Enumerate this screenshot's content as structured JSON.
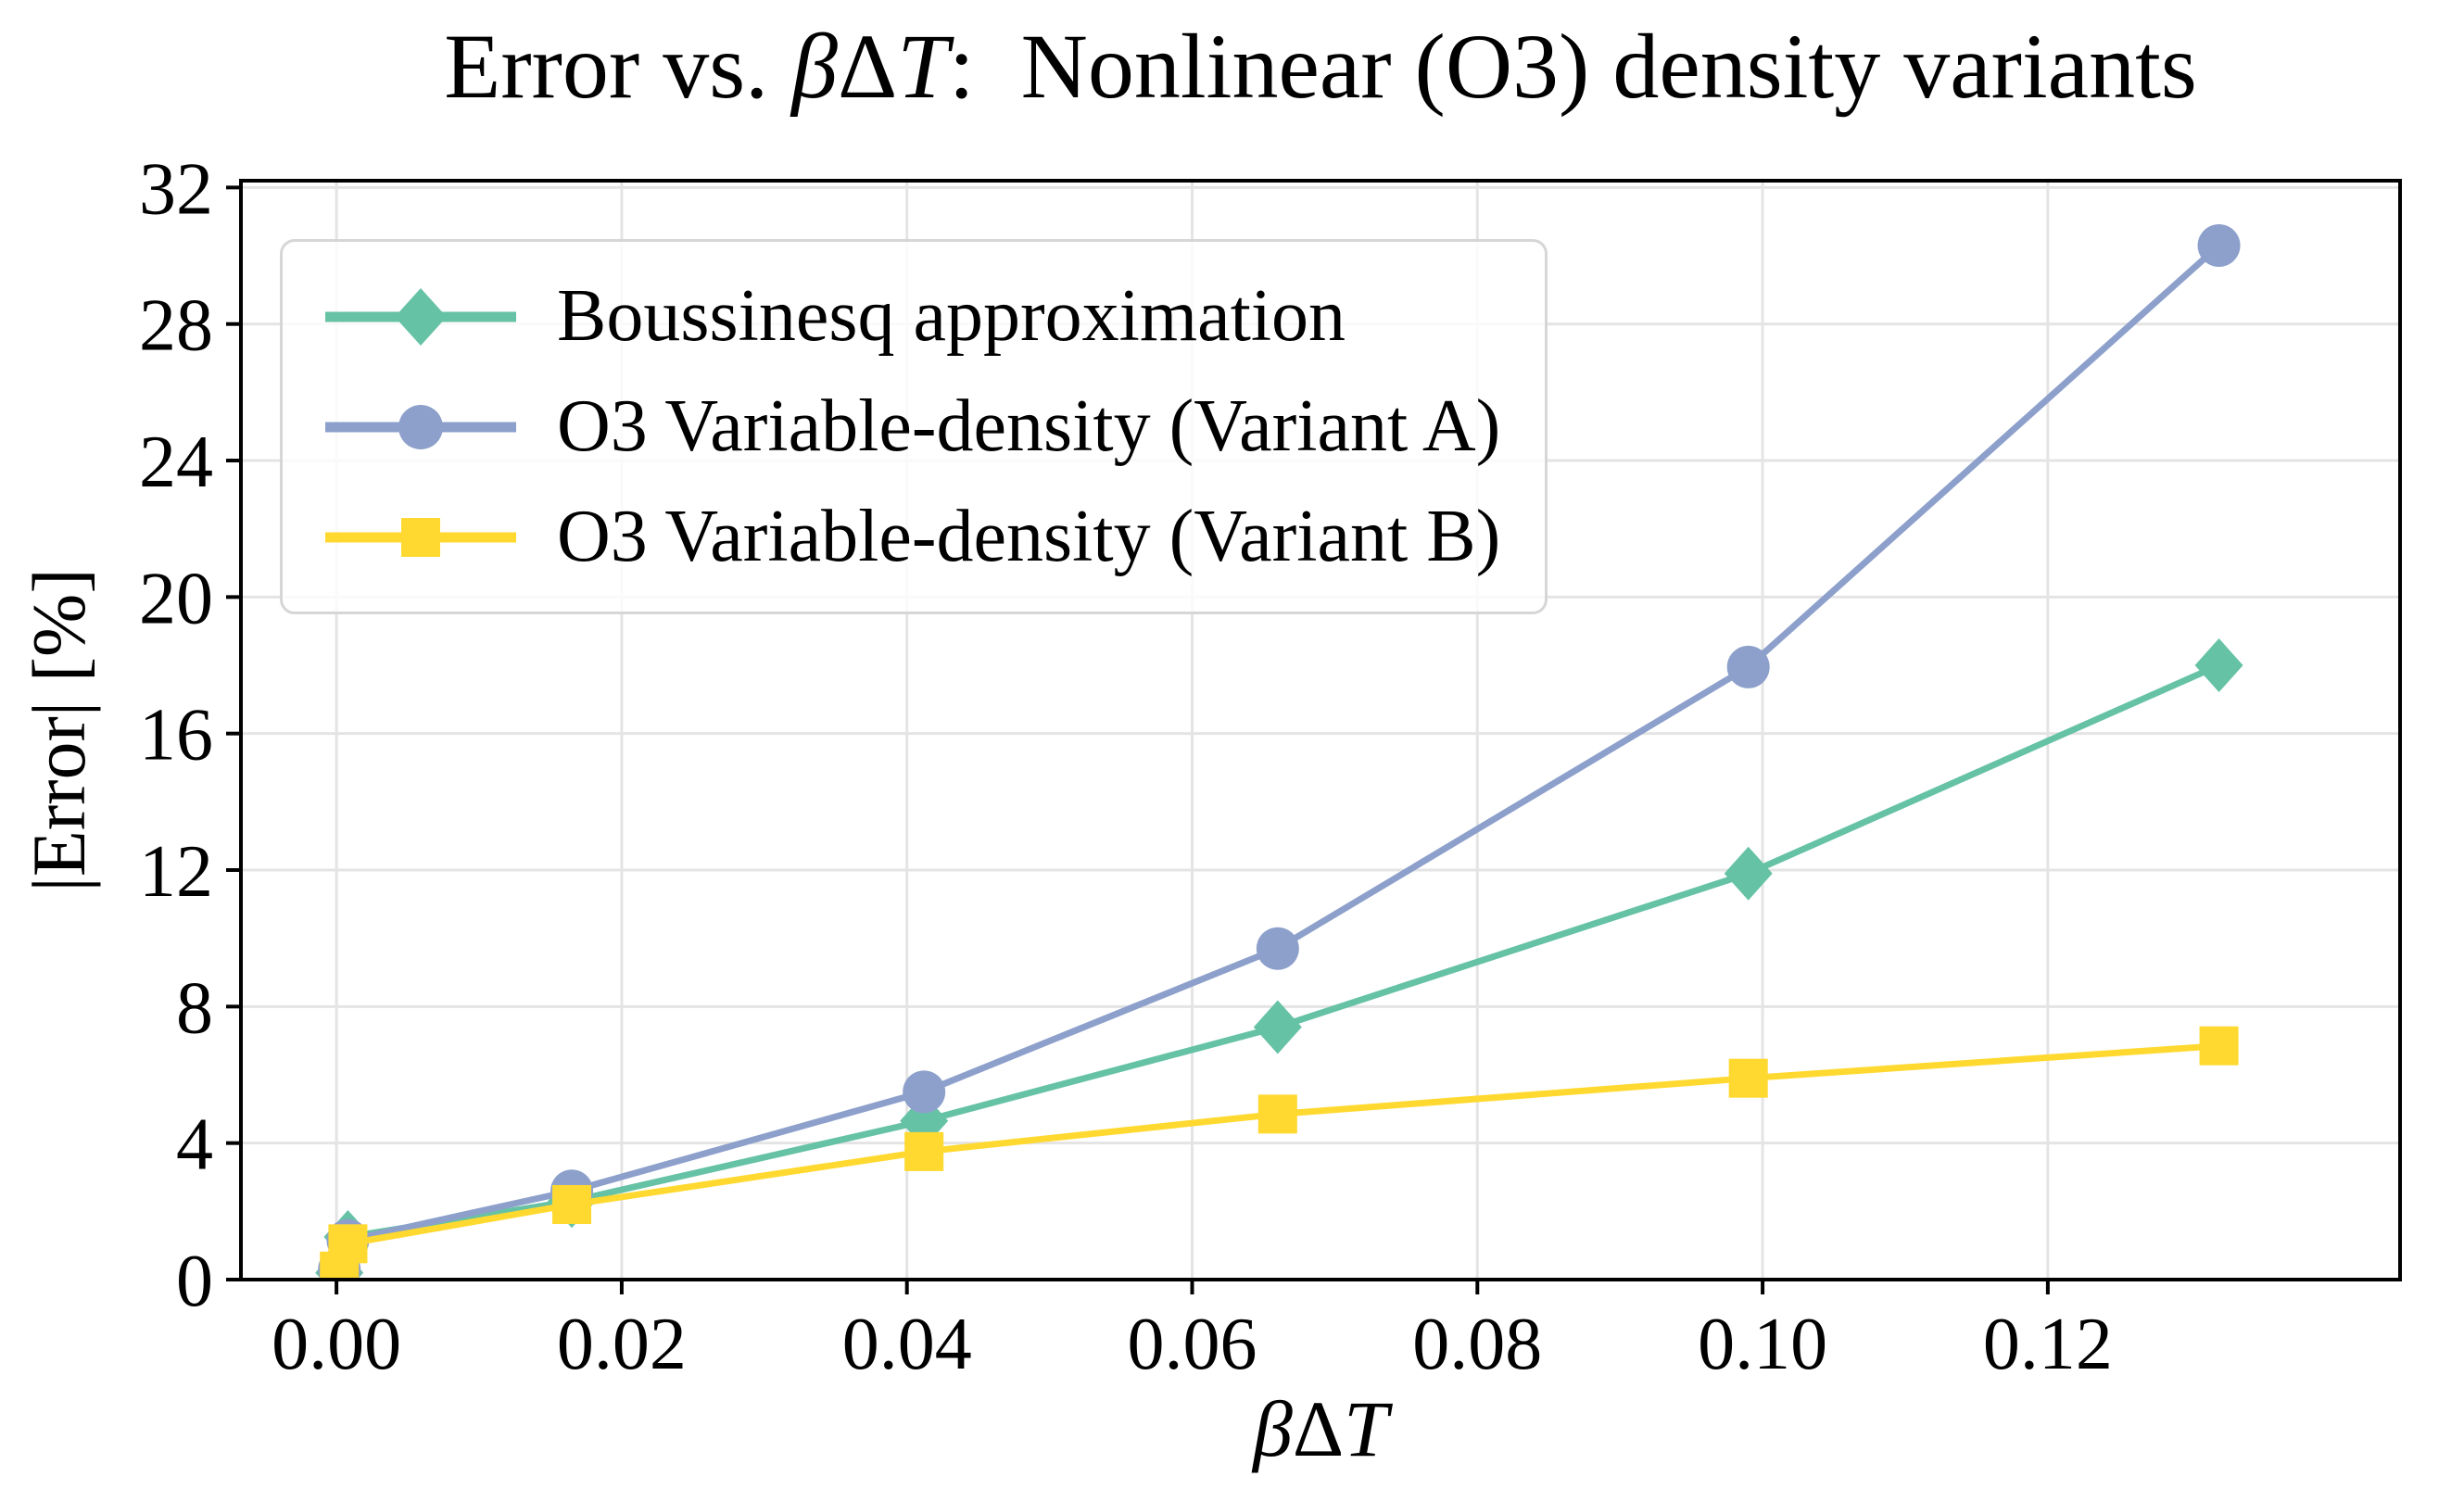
{
  "chart_data": {
    "type": "line",
    "title": {
      "prefix": "Error vs. ",
      "math_parts": [
        "β",
        "Δ",
        "T"
      ],
      "suffix": ":  Nonlinear (O3) density variants"
    },
    "xlabel": {
      "math_parts": [
        "β",
        "Δ",
        "T"
      ]
    },
    "ylabel": "|Error| [%]",
    "x_ticks": {
      "values": [
        0.0,
        0.02,
        0.04,
        0.06,
        0.08,
        0.1,
        0.12
      ],
      "labels": [
        "0.00",
        "0.02",
        "0.04",
        "0.06",
        "0.08",
        "0.10",
        "0.12"
      ]
    },
    "y_ticks": {
      "values": [
        0,
        4,
        8,
        12,
        16,
        20,
        24,
        28,
        32
      ],
      "labels": [
        "0",
        "4",
        "8",
        "12",
        "16",
        "20",
        "24",
        "28",
        "32"
      ]
    },
    "xlim": [
      -0.0067,
      0.1447
    ],
    "ylim": [
      0,
      32.2
    ],
    "grid": true,
    "legend_position": "upper left",
    "x": [
      0.0002,
      0.0008,
      0.0165,
      0.0412,
      0.066,
      0.099,
      0.132
    ],
    "series": [
      {
        "name": "Boussinesq approximation",
        "color": "#66c2a5",
        "marker": "diamond",
        "values": [
          0.2,
          1.25,
          2.3,
          4.65,
          7.4,
          11.9,
          18.0
        ]
      },
      {
        "name": "O3 Variable-density (Variant A)",
        "color": "#8da0cb",
        "marker": "circle",
        "values": [
          0.3,
          1.15,
          2.6,
          5.5,
          9.7,
          17.95,
          30.3
        ]
      },
      {
        "name": "O3 Variable-density (Variant B)",
        "color": "#ffd92f",
        "marker": "square",
        "values": [
          0.25,
          1.05,
          2.2,
          3.75,
          4.85,
          5.9,
          6.85
        ]
      }
    ],
    "colors": {
      "grid": "#e4e4e4",
      "spine": "#000000",
      "legend_border": "#d6d6d6"
    }
  }
}
